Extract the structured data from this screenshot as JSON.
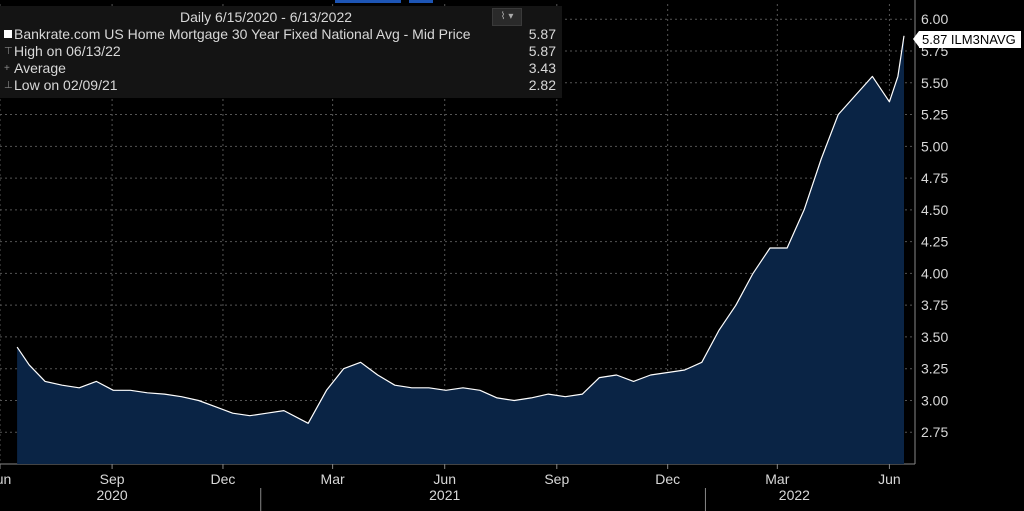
{
  "chart_data": {
    "type": "area",
    "legend": {
      "range": "Daily 6/15/2020 - 6/13/2022",
      "series_label": "Bankrate.com US Home Mortgage 30 Year Fixed National Avg - Mid Price",
      "series_value": "5.87",
      "high_label": "High on 06/13/22",
      "high_value": "5.87",
      "avg_label": "Average",
      "avg_value": "3.43",
      "low_label": "Low on 02/09/21",
      "low_value": "2.82"
    },
    "last_badge": "5.87 ILM3NAVG",
    "ylim": [
      2.5,
      6.12
    ],
    "yticks": [
      "2.75",
      "3.00",
      "3.25",
      "3.50",
      "3.75",
      "4.00",
      "4.25",
      "4.50",
      "4.75",
      "5.00",
      "5.25",
      "5.50",
      "5.75",
      "6.00"
    ],
    "xticks": [
      "Jun",
      "Sep",
      "Dec",
      "Mar",
      "Jun",
      "Sep",
      "Dec",
      "Mar",
      "Jun"
    ],
    "years": [
      "2020",
      "2021",
      "2022"
    ],
    "series": [
      {
        "x": [
          "2020-06-15",
          "2020-06-25",
          "2020-07-08",
          "2020-07-22",
          "2020-08-05",
          "2020-08-19",
          "2020-09-02",
          "2020-09-16",
          "2020-09-30",
          "2020-10-14",
          "2020-10-28",
          "2020-11-11",
          "2020-11-25",
          "2020-12-09",
          "2020-12-23",
          "2021-01-06",
          "2021-01-20",
          "2021-02-09",
          "2021-02-24",
          "2021-03-10",
          "2021-03-24",
          "2021-04-07",
          "2021-04-21",
          "2021-05-05",
          "2021-05-19",
          "2021-06-02",
          "2021-06-16",
          "2021-06-30",
          "2021-07-14",
          "2021-07-28",
          "2021-08-11",
          "2021-08-25",
          "2021-09-08",
          "2021-09-22",
          "2021-10-06",
          "2021-10-20",
          "2021-11-03",
          "2021-11-17",
          "2021-12-01",
          "2021-12-15",
          "2021-12-29",
          "2022-01-12",
          "2022-01-26",
          "2022-02-09",
          "2022-02-23",
          "2022-03-09",
          "2022-03-23",
          "2022-04-06",
          "2022-04-20",
          "2022-05-04",
          "2022-05-18",
          "2022-06-01",
          "2022-06-08",
          "2022-06-13"
        ],
        "values": [
          3.42,
          3.28,
          3.15,
          3.12,
          3.1,
          3.15,
          3.08,
          3.08,
          3.06,
          3.05,
          3.03,
          3.0,
          2.95,
          2.9,
          2.88,
          2.9,
          2.92,
          2.82,
          3.08,
          3.25,
          3.3,
          3.2,
          3.12,
          3.1,
          3.1,
          3.08,
          3.1,
          3.08,
          3.02,
          3.0,
          3.02,
          3.05,
          3.03,
          3.05,
          3.18,
          3.2,
          3.15,
          3.2,
          3.22,
          3.24,
          3.3,
          3.55,
          3.75,
          4.0,
          4.2,
          4.2,
          4.5,
          4.9,
          5.25,
          5.4,
          5.55,
          5.35,
          5.55,
          5.87
        ]
      }
    ],
    "colors": {
      "line": "#ffffff",
      "fill": "#0a2445",
      "grid": "#555555",
      "text": "#d8d8d8"
    }
  }
}
